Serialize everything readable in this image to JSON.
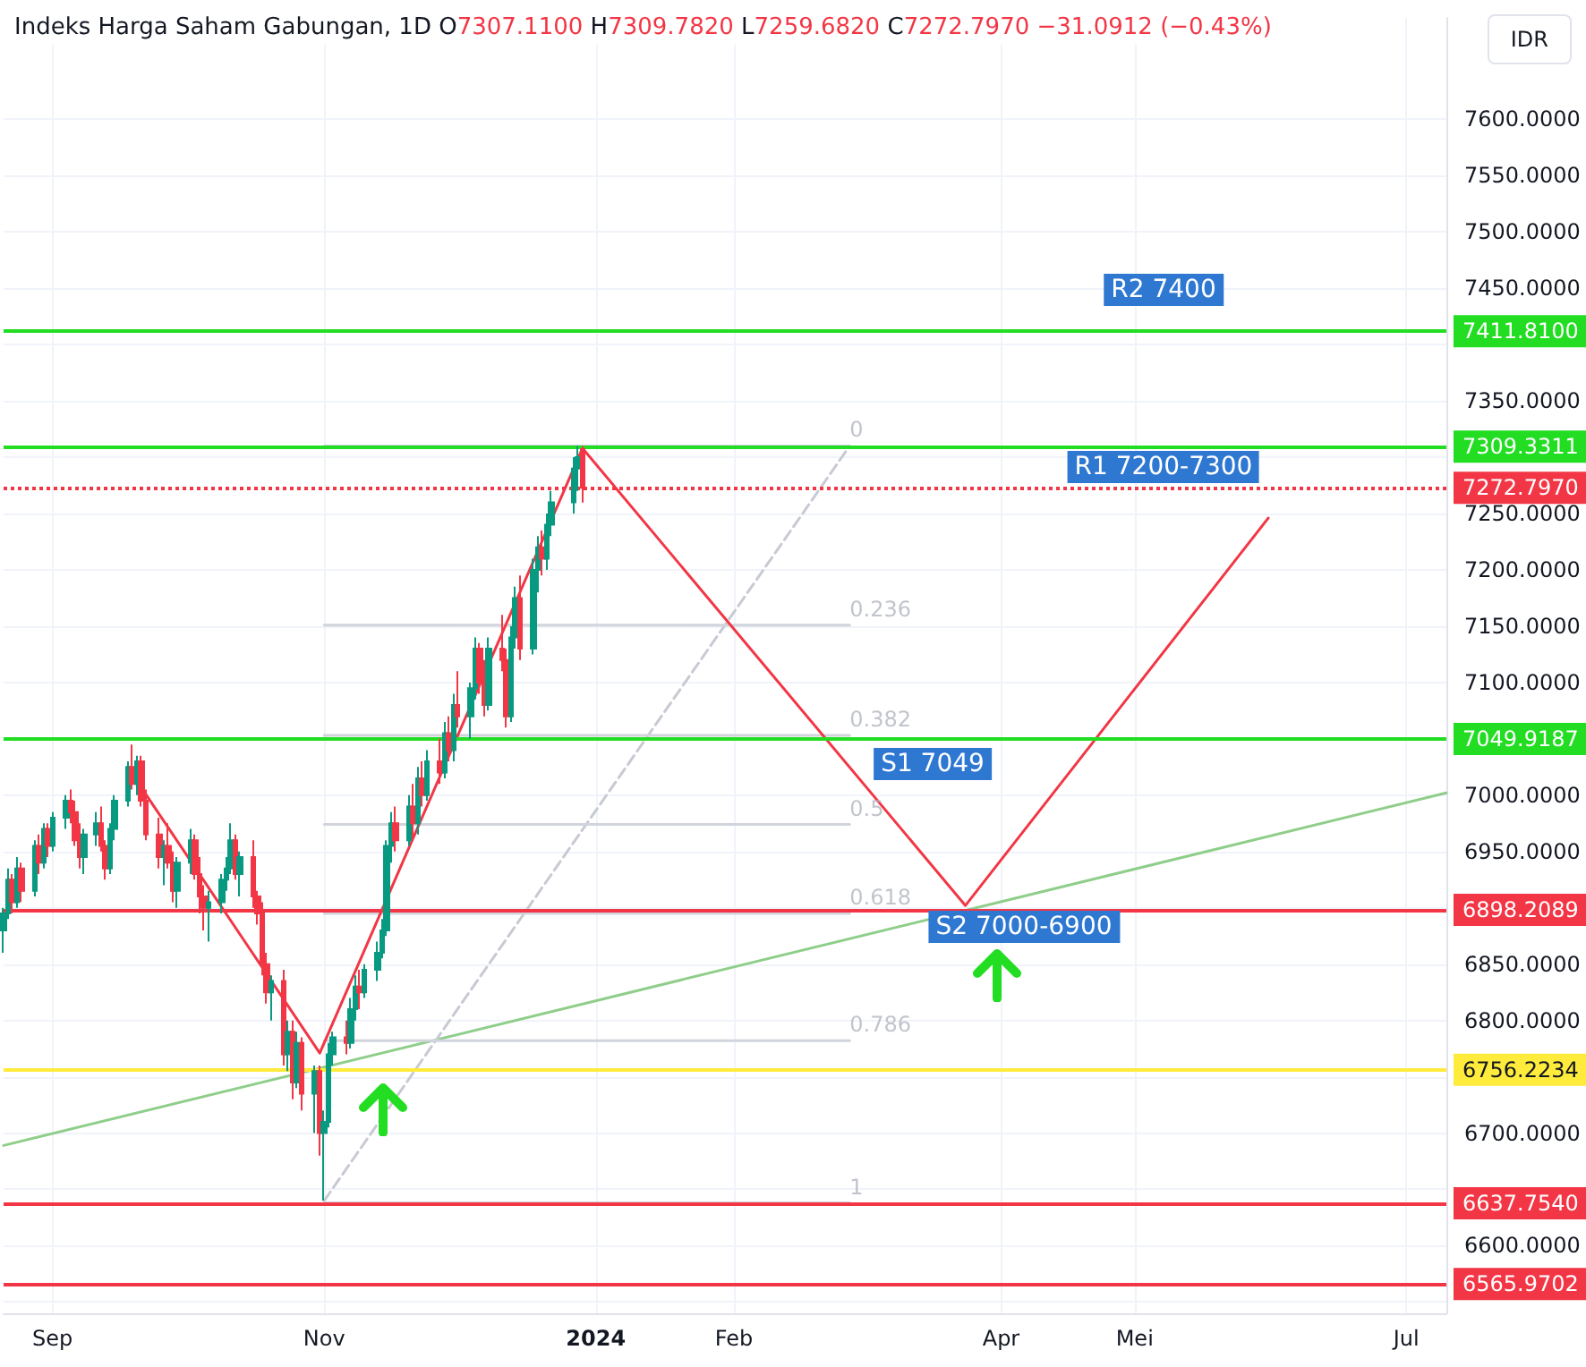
{
  "chart_data": {
    "type": "candlestick",
    "title": "Indeks Harga Saham Gabungan, 1D",
    "annotations": [
      "O7307.1100 H7309.7820 L7259.6820 C7272.7970 −31.0912 (−0.43%)",
      "IDR",
      "R2 7400",
      "R1 7200-7300",
      "S1 7049",
      "S2 7000-6900",
      {
        "text": "0",
        "x": "2024-02-27",
        "y": 7310
      },
      {
        "text": "0.236",
        "x": "2024-02-27",
        "y": 7151
      },
      {
        "text": "0.382",
        "x": "2024-02-27",
        "y": 7053
      },
      {
        "text": "0.5",
        "x": "2024-02-27",
        "y": 6974
      },
      {
        "text": "0.618",
        "x": "2024-02-27",
        "y": 6895
      },
      {
        "text": "0.786",
        "x": "2024-02-27",
        "y": 6782
      },
      {
        "text": "1",
        "x": "2024-02-27",
        "y": 6638
      }
    ],
    "x": [
      "2023-08-21",
      "2023-08-22",
      "2023-08-23",
      "2023-08-24",
      "2023-08-25",
      "2023-08-28",
      "2023-08-29",
      "2023-08-30",
      "2023-08-31",
      "2023-09-01",
      "2023-09-04",
      "2023-09-05",
      "2023-09-06",
      "2023-09-07",
      "2023-09-08",
      "2023-09-11",
      "2023-09-12",
      "2023-09-13",
      "2023-09-14",
      "2023-09-15",
      "2023-09-18",
      "2023-09-19",
      "2023-09-20",
      "2023-09-21",
      "2023-09-22",
      "2023-09-25",
      "2023-09-26",
      "2023-09-27",
      "2023-09-28",
      "2023-09-29",
      "2023-10-02",
      "2023-10-03",
      "2023-10-04",
      "2023-10-05",
      "2023-10-06",
      "2023-10-09",
      "2023-10-10",
      "2023-10-11",
      "2023-10-12",
      "2023-10-13",
      "2023-10-16",
      "2023-10-17",
      "2023-10-18",
      "2023-10-19",
      "2023-10-20",
      "2023-10-23",
      "2023-10-24",
      "2023-10-25",
      "2023-10-26",
      "2023-10-27",
      "2023-10-30",
      "2023-10-31",
      "2023-11-01",
      "2023-11-02",
      "2023-11-03",
      "2023-11-06",
      "2023-11-07",
      "2023-11-08",
      "2023-11-09",
      "2023-11-10",
      "2023-11-13",
      "2023-11-14",
      "2023-11-15",
      "2023-11-16",
      "2023-11-17",
      "2023-11-20",
      "2023-11-21",
      "2023-11-22",
      "2023-11-23",
      "2023-11-24",
      "2023-11-27",
      "2023-11-28",
      "2023-11-29",
      "2023-11-30",
      "2023-12-01",
      "2023-12-04",
      "2023-12-05",
      "2023-12-06",
      "2023-12-07",
      "2023-12-08",
      "2023-12-11",
      "2023-12-12",
      "2023-12-13",
      "2023-12-14",
      "2023-12-15",
      "2023-12-18",
      "2023-12-19",
      "2023-12-20",
      "2023-12-21",
      "2023-12-22",
      "2023-12-27",
      "2023-12-28",
      "2023-12-29"
    ],
    "ohlc": [
      [
        6880,
        6900,
        6860,
        6895
      ],
      [
        6895,
        6935,
        6890,
        6925
      ],
      [
        6925,
        6930,
        6895,
        6905
      ],
      [
        6905,
        6945,
        6900,
        6935
      ],
      [
        6935,
        6940,
        6905,
        6915
      ],
      [
        6915,
        6960,
        6910,
        6955
      ],
      [
        6955,
        6965,
        6930,
        6940
      ],
      [
        6940,
        6975,
        6935,
        6970
      ],
      [
        6970,
        6975,
        6945,
        6955
      ],
      [
        6955,
        6985,
        6950,
        6980
      ],
      [
        6980,
        7000,
        6970,
        6995
      ],
      [
        6995,
        7005,
        6975,
        6985
      ],
      [
        6985,
        6995,
        6955,
        6960
      ],
      [
        6960,
        6975,
        6935,
        6945
      ],
      [
        6945,
        6970,
        6930,
        6965
      ],
      [
        6965,
        6985,
        6955,
        6975
      ],
      [
        6975,
        6990,
        6950,
        6955
      ],
      [
        6955,
        6960,
        6925,
        6935
      ],
      [
        6935,
        6975,
        6930,
        6970
      ],
      [
        6970,
        7000,
        6960,
        6995
      ],
      [
        6995,
        7030,
        6990,
        7025
      ],
      [
        7025,
        7045,
        7005,
        7010
      ],
      [
        7010,
        7035,
        7000,
        7030
      ],
      [
        7030,
        7035,
        6990,
        6995
      ],
      [
        6995,
        7005,
        6960,
        6965
      ],
      [
        6965,
        6980,
        6935,
        6945
      ],
      [
        6945,
        6960,
        6920,
        6955
      ],
      [
        6955,
        6975,
        6935,
        6940
      ],
      [
        6940,
        6950,
        6905,
        6915
      ],
      [
        6915,
        6945,
        6900,
        6940
      ],
      [
        6940,
        6970,
        6930,
        6960
      ],
      [
        6960,
        6965,
        6925,
        6930
      ],
      [
        6930,
        6945,
        6895,
        6910
      ],
      [
        6910,
        6920,
        6880,
        6900
      ],
      [
        6900,
        6915,
        6870,
        6905
      ],
      [
        6905,
        6930,
        6895,
        6925
      ],
      [
        6925,
        6945,
        6915,
        6935
      ],
      [
        6935,
        6975,
        6930,
        6960
      ],
      [
        6960,
        6965,
        6925,
        6930
      ],
      [
        6930,
        6950,
        6910,
        6945
      ],
      [
        6945,
        6960,
        6900,
        6910
      ],
      [
        6910,
        6915,
        6885,
        6895
      ],
      [
        6895,
        6905,
        6840,
        6850
      ],
      [
        6850,
        6860,
        6815,
        6825
      ],
      [
        6825,
        6840,
        6800,
        6835
      ],
      [
        6835,
        6845,
        6760,
        6770
      ],
      [
        6770,
        6800,
        6755,
        6790
      ],
      [
        6790,
        6800,
        6730,
        6745
      ],
      [
        6745,
        6790,
        6740,
        6780
      ],
      [
        6780,
        6785,
        6720,
        6735
      ],
      [
        6735,
        6760,
        6700,
        6755
      ],
      [
        6755,
        6760,
        6680,
        6700
      ],
      [
        6700,
        6720,
        6640,
        6710
      ],
      [
        6710,
        6780,
        6705,
        6770
      ],
      [
        6770,
        6790,
        6760,
        6785
      ],
      [
        6785,
        6800,
        6770,
        6780
      ],
      [
        6780,
        6820,
        6775,
        6810
      ],
      [
        6810,
        6840,
        6800,
        6830
      ],
      [
        6830,
        6845,
        6810,
        6825
      ],
      [
        6825,
        6850,
        6820,
        6845
      ],
      [
        6845,
        6870,
        6835,
        6860
      ],
      [
        6860,
        6890,
        6855,
        6880
      ],
      [
        6880,
        6960,
        6875,
        6955
      ],
      [
        6955,
        6985,
        6940,
        6975
      ],
      [
        6975,
        6990,
        6950,
        6960
      ],
      [
        6960,
        7000,
        6955,
        6990
      ],
      [
        6990,
        7010,
        6960,
        6975
      ],
      [
        6975,
        7025,
        6965,
        7015
      ],
      [
        7015,
        7030,
        6990,
        7000
      ],
      [
        7000,
        7040,
        6995,
        7030
      ],
      [
        7030,
        7050,
        7010,
        7020
      ],
      [
        7020,
        7065,
        7015,
        7055
      ],
      [
        7055,
        7070,
        7030,
        7040
      ],
      [
        7040,
        7090,
        7030,
        7080
      ],
      [
        7080,
        7110,
        7060,
        7070
      ],
      [
        7070,
        7100,
        7050,
        7095
      ],
      [
        7095,
        7140,
        7085,
        7130
      ],
      [
        7130,
        7135,
        7090,
        7100
      ],
      [
        7100,
        7120,
        7070,
        7080
      ],
      [
        7080,
        7140,
        7075,
        7130
      ],
      [
        7130,
        7160,
        7110,
        7120
      ],
      [
        7120,
        7130,
        7060,
        7070
      ],
      [
        7070,
        7150,
        7065,
        7140
      ],
      [
        7140,
        7185,
        7130,
        7175
      ],
      [
        7175,
        7195,
        7120,
        7130
      ],
      [
        7130,
        7210,
        7125,
        7200
      ],
      [
        7200,
        7230,
        7180,
        7220
      ],
      [
        7220,
        7235,
        7195,
        7210
      ],
      [
        7210,
        7250,
        7200,
        7240
      ],
      [
        7240,
        7270,
        7230,
        7260
      ],
      [
        7260,
        7300,
        7250,
        7290
      ],
      [
        7290,
        7310,
        7270,
        7300
      ],
      [
        7307.11,
        7309.782,
        7259.682,
        7272.797
      ]
    ],
    "series": [
      {
        "type": "line",
        "x": [
          "2023-08-21",
          "2024-07-10"
        ],
        "values": [
          6689,
          7002
        ],
        "color": "#8fce8a",
        "line_style": "solid"
      },
      {
        "type": "line",
        "x": [
          "2023-11-01",
          "2024-02-27"
        ],
        "values": [
          6640,
          7310
        ],
        "color": "#c8cad3",
        "line_style": "dashed"
      },
      {
        "type": "line",
        "x": [
          "2023-11-01",
          "2024-02-27"
        ],
        "values": [
          7310,
          7310
        ],
        "color": "#d1d4dc",
        "line_style": "solid"
      },
      {
        "type": "line",
        "x": [
          "2023-11-01",
          "2024-02-27"
        ],
        "values": [
          7151,
          7151
        ],
        "color": "#d1d4dc",
        "line_style": "solid"
      },
      {
        "type": "line",
        "x": [
          "2023-11-01",
          "2024-02-27"
        ],
        "values": [
          7053,
          7053
        ],
        "color": "#d1d4dc",
        "line_style": "solid"
      },
      {
        "type": "line",
        "x": [
          "2023-11-01",
          "2024-02-27"
        ],
        "values": [
          6974,
          6974
        ],
        "color": "#d1d4dc",
        "line_style": "solid"
      },
      {
        "type": "line",
        "x": [
          "2023-11-01",
          "2024-02-27"
        ],
        "values": [
          6895,
          6895
        ],
        "color": "#d1d4dc",
        "line_style": "solid"
      },
      {
        "type": "line",
        "x": [
          "2023-11-01",
          "2024-02-27"
        ],
        "values": [
          6782,
          6782
        ],
        "color": "#d1d4dc",
        "line_style": "solid"
      },
      {
        "type": "line",
        "x": [
          "2023-11-01",
          "2024-02-27"
        ],
        "values": [
          6638,
          6638
        ],
        "color": "#d1d4dc",
        "line_style": "solid"
      },
      {
        "type": "line",
        "x": [
          "2023-09-18",
          "2023-10-31",
          "2023-12-29"
        ],
        "values": [
          7024,
          6771,
          7308
        ],
        "color": "#f23645",
        "line_style": "solid"
      },
      {
        "type": "line",
        "x": [
          "2023-12-29",
          "2024-03-24",
          "2024-05-31"
        ],
        "values": [
          7308,
          6902,
          7246
        ],
        "color": "#f23645",
        "line_style": "solid"
      }
    ],
    "ref_lines": [
      {
        "axis": "y",
        "value": 7411.81,
        "label": "7411.8100",
        "color": "#22dd22"
      },
      {
        "axis": "y",
        "value": 7309.3311,
        "label": "7309.3311",
        "color": "#22dd22"
      },
      {
        "axis": "y",
        "value": 7272.797,
        "label": "7272.7970",
        "color": "#f23645",
        "line_style": "dotted"
      },
      {
        "axis": "y",
        "value": 7049.9187,
        "label": "7049.9187",
        "color": "#22dd22"
      },
      {
        "axis": "y",
        "value": 6898.2089,
        "label": "6898.2089",
        "color": "#f23645"
      },
      {
        "axis": "y",
        "value": 6756.2234,
        "label": "6756.2234",
        "color": "#ffeb3b"
      },
      {
        "axis": "y",
        "value": 6637.754,
        "label": "6637.7540",
        "color": "#f23645"
      },
      {
        "axis": "y",
        "value": 6565.9702,
        "label": "6565.9702",
        "color": "#f23645"
      }
    ],
    "xlim": [
      "2023-08-21",
      "2024-07-10"
    ],
    "xticks": [
      {
        "value": "2023-09-01",
        "label": "Sep"
      },
      {
        "value": "2023-11-01",
        "label": "Nov"
      },
      {
        "value": "2024-01-01",
        "label": "2024"
      },
      {
        "value": "2024-02-01",
        "label": "Feb"
      },
      {
        "value": "2024-04-01",
        "label": "Apr"
      },
      {
        "value": "2024-05-01",
        "label": "Mei"
      },
      {
        "value": "2024-07-01",
        "label": "Jul"
      }
    ],
    "ylim": [
      6540,
      7690
    ],
    "yticks": [
      {
        "value": 6550,
        "label": null
      },
      {
        "value": 6600,
        "label": "6600.0000"
      },
      {
        "value": 6650,
        "label": null
      },
      {
        "value": 6700,
        "label": "6700.0000"
      },
      {
        "value": 6750,
        "label": null
      },
      {
        "value": 6800,
        "label": "6800.0000"
      },
      {
        "value": 6850,
        "label": "6850.0000"
      },
      {
        "value": 6900,
        "label": null
      },
      {
        "value": 6950,
        "label": "6950.0000"
      },
      {
        "value": 7000,
        "label": "7000.0000"
      },
      {
        "value": 7050,
        "label": null
      },
      {
        "value": 7100,
        "label": "7100.0000"
      },
      {
        "value": 7150,
        "label": "7150.0000"
      },
      {
        "value": 7200,
        "label": "7200.0000"
      },
      {
        "value": 7250,
        "label": "7250.0000"
      },
      {
        "value": 7300,
        "label": null
      },
      {
        "value": 7350,
        "label": "7350.0000"
      },
      {
        "value": 7400,
        "label": null
      },
      {
        "value": 7450,
        "label": "7450.0000"
      },
      {
        "value": 7500,
        "label": "7500.0000"
      },
      {
        "value": 7550,
        "label": "7550.0000"
      },
      {
        "value": 7600,
        "label": "7600.0000"
      }
    ],
    "grid": true
  }
}
